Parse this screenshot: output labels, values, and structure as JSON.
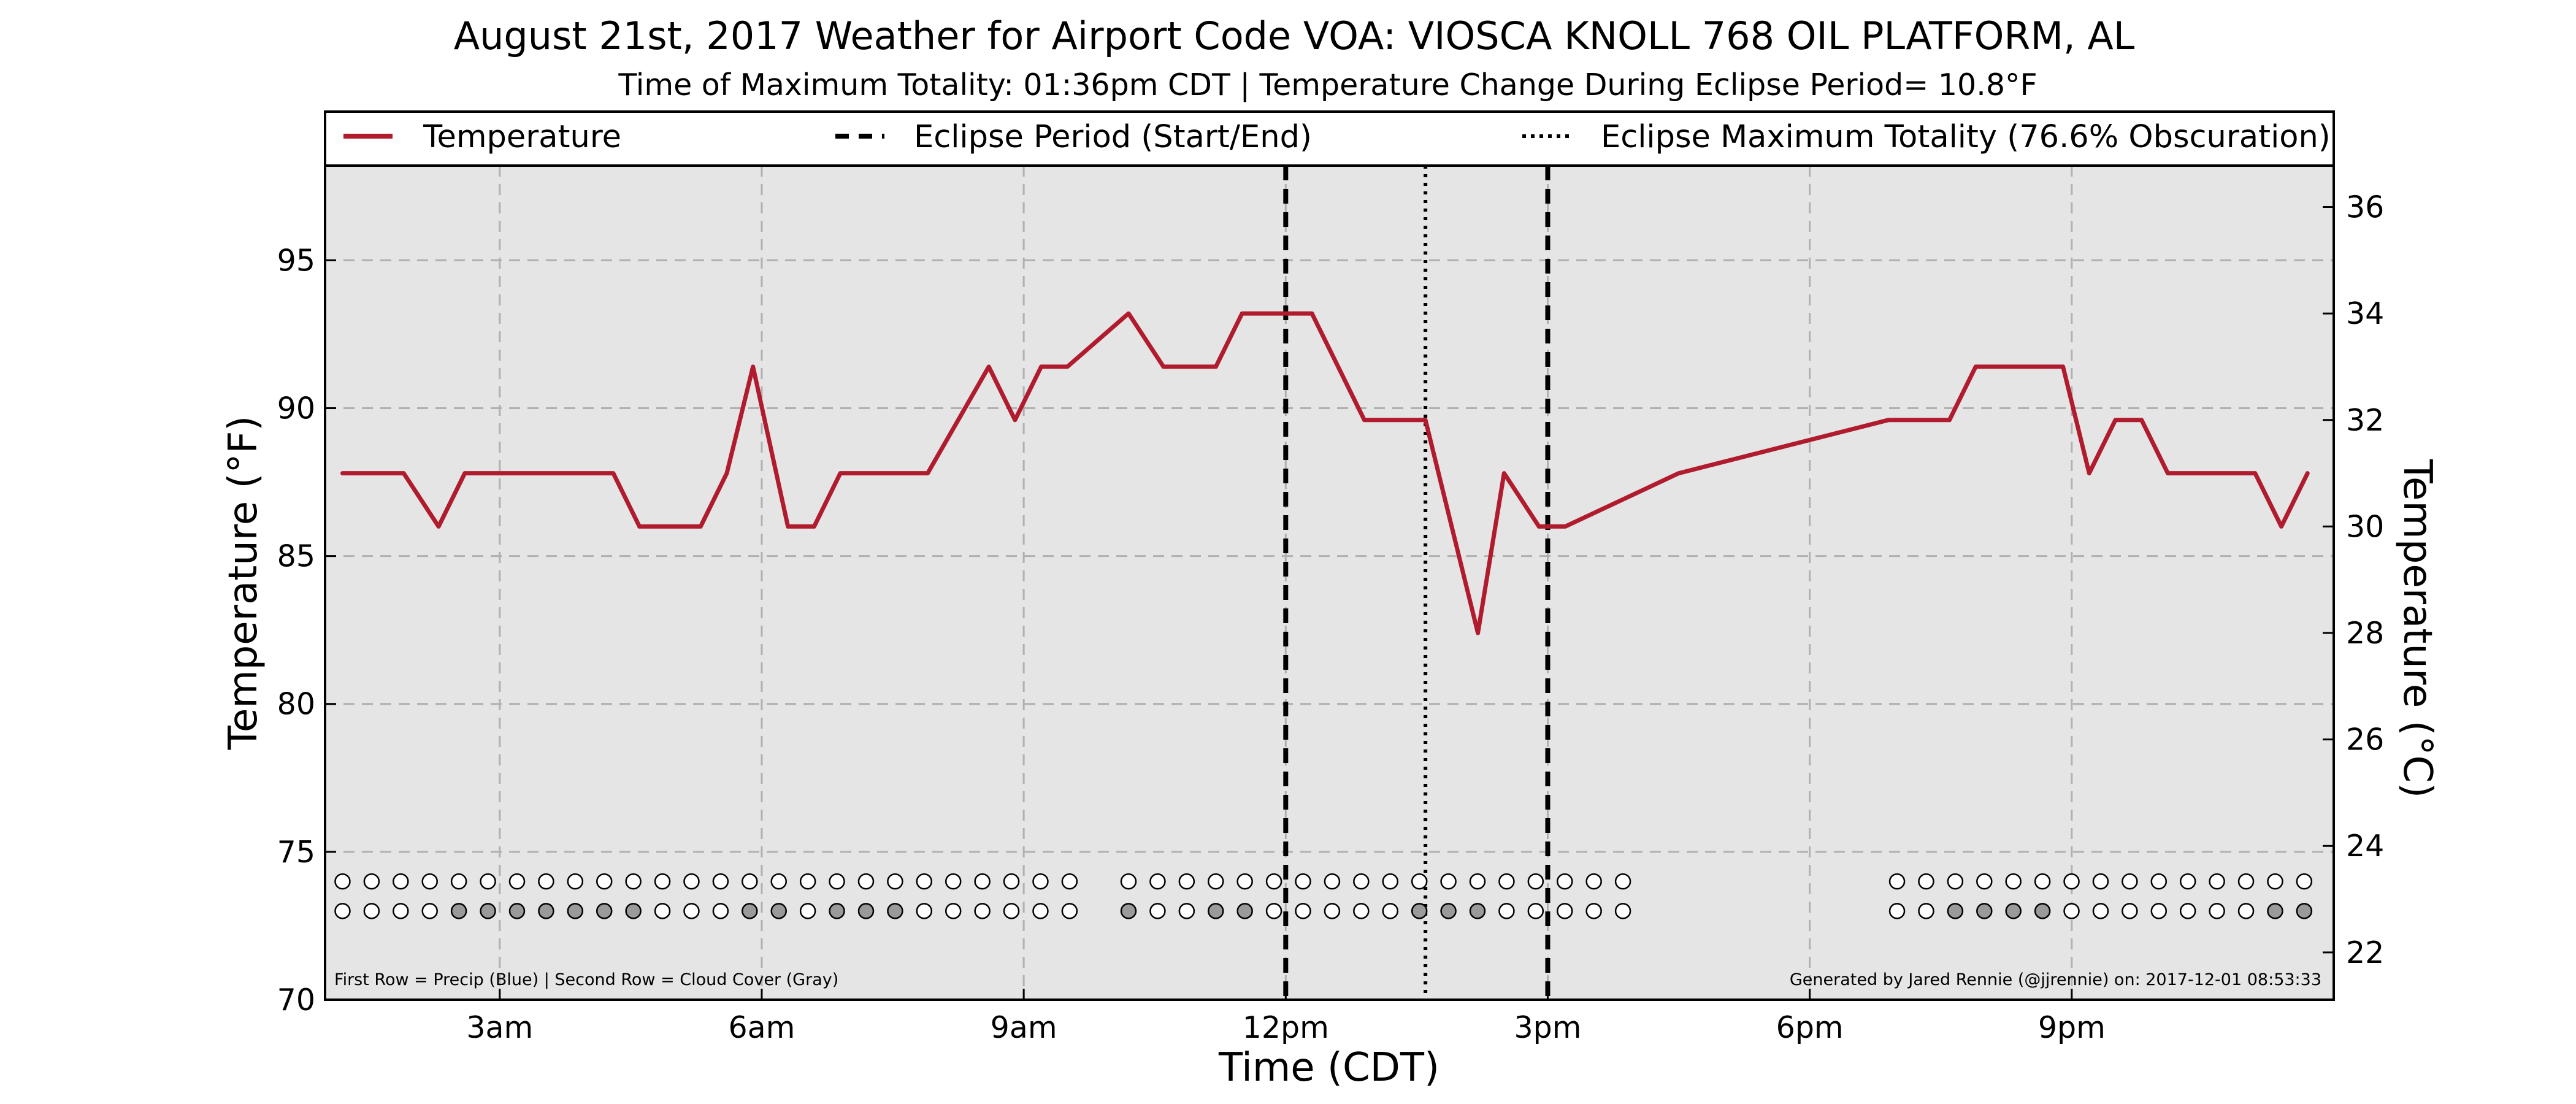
{
  "chart_data": {
    "type": "line",
    "title": "August 21st, 2017 Weather for Airport Code VOA: VIOSCA KNOLL 768 OIL PLATFORM, AL",
    "subtitle": "Time of Maximum Totality: 01:36pm CDT | Temperature Change During Eclipse Period= 10.8°F",
    "xlabel": "Time (CDT)",
    "ylabel": "Temperature (°F)",
    "ylabel_right": "Temperature (°C)",
    "xlim": [
      1,
      24
    ],
    "ylim": [
      70,
      98.2
    ],
    "ylim_right_c": [
      21.11,
      36.78
    ],
    "x_ticks": [
      {
        "value": 3,
        "label": "3am"
      },
      {
        "value": 6,
        "label": "6am"
      },
      {
        "value": 9,
        "label": "9am"
      },
      {
        "value": 12,
        "label": "12pm"
      },
      {
        "value": 15,
        "label": "3pm"
      },
      {
        "value": 18,
        "label": "6pm"
      },
      {
        "value": 21,
        "label": "9pm"
      }
    ],
    "y_ticks": [
      70,
      75,
      80,
      85,
      90,
      95
    ],
    "y_ticks_right": [
      22,
      24,
      26,
      28,
      30,
      32,
      34,
      36
    ],
    "grid": true,
    "legend_position": "top",
    "legend": [
      {
        "label": "Temperature",
        "style": "solid"
      },
      {
        "label": "Eclipse Period (Start/End)",
        "style": "dashed"
      },
      {
        "label": "Eclipse Maximum Totality (76.6% Obscuration)",
        "style": "dotted"
      }
    ],
    "series": [
      {
        "name": "Temperature",
        "color": "#b01c2e",
        "points": [
          [
            1.2,
            87.8
          ],
          [
            1.6,
            87.8
          ],
          [
            1.9,
            87.8
          ],
          [
            2.3,
            86.0
          ],
          [
            2.6,
            87.8
          ],
          [
            3.0,
            87.8
          ],
          [
            3.3,
            87.8
          ],
          [
            4.3,
            87.8
          ],
          [
            4.6,
            86.0
          ],
          [
            5.0,
            86.0
          ],
          [
            5.3,
            86.0
          ],
          [
            5.6,
            87.8
          ],
          [
            5.9,
            91.4
          ],
          [
            6.3,
            86.0
          ],
          [
            6.6,
            86.0
          ],
          [
            6.9,
            87.8
          ],
          [
            7.9,
            87.8
          ],
          [
            8.6,
            91.4
          ],
          [
            8.9,
            89.6
          ],
          [
            9.2,
            91.4
          ],
          [
            9.5,
            91.4
          ],
          [
            10.2,
            93.2
          ],
          [
            10.6,
            91.4
          ],
          [
            11.2,
            91.4
          ],
          [
            11.5,
            93.2
          ],
          [
            12.0,
            93.2
          ],
          [
            12.3,
            93.2
          ],
          [
            12.9,
            89.6
          ],
          [
            13.6,
            89.6
          ],
          [
            14.2,
            82.4
          ],
          [
            14.5,
            87.8
          ],
          [
            14.9,
            86.0
          ],
          [
            15.2,
            86.0
          ],
          [
            16.5,
            87.8
          ],
          [
            18.9,
            89.6
          ],
          [
            19.6,
            89.6
          ],
          [
            19.9,
            91.4
          ],
          [
            20.9,
            91.4
          ],
          [
            21.2,
            87.8
          ],
          [
            21.5,
            89.6
          ],
          [
            21.8,
            89.6
          ],
          [
            22.1,
            87.8
          ],
          [
            23.1,
            87.8
          ],
          [
            23.4,
            86.0
          ],
          [
            23.7,
            87.8
          ]
        ]
      }
    ],
    "eclipse_start": 12.0,
    "eclipse_max": 13.6,
    "eclipse_end": 15.0,
    "indicator_rows": {
      "precip_y": 74.0,
      "cloud_y": 73.0,
      "precip_color": "#ffffff",
      "cloud_clear_color": "#ffffff",
      "cloud_cover_color": "#9a9a9a",
      "groups": [
        {
          "start": 1.2,
          "step": 0.333,
          "cloud": [
            0,
            0,
            0,
            0,
            1,
            1,
            1,
            1,
            1,
            1,
            1,
            0,
            0,
            0,
            1,
            1,
            0,
            1,
            1,
            1,
            0,
            0,
            0,
            0,
            0,
            0
          ]
        },
        {
          "start": 10.2,
          "step": 0.333,
          "cloud": [
            1,
            0,
            0,
            1,
            1,
            0,
            0,
            0,
            0,
            0,
            1,
            1,
            1,
            0,
            0,
            0,
            0,
            0
          ]
        },
        {
          "start": 19.0,
          "step": 0.333,
          "cloud": [
            0,
            0,
            1,
            1,
            1,
            1,
            0,
            0,
            0,
            0,
            0,
            0,
            0,
            1,
            1
          ]
        }
      ]
    },
    "footnote_left": "First Row = Precip (Blue) | Second Row = Cloud Cover (Gray)",
    "footnote_right": "Generated by Jared Rennie (@jjrennie) on: 2017-12-01 08:53:33",
    "colors": {
      "temperature": "#b01c2e",
      "plot_background": "#e5e5e5",
      "grid": "#b0b0b0"
    }
  }
}
